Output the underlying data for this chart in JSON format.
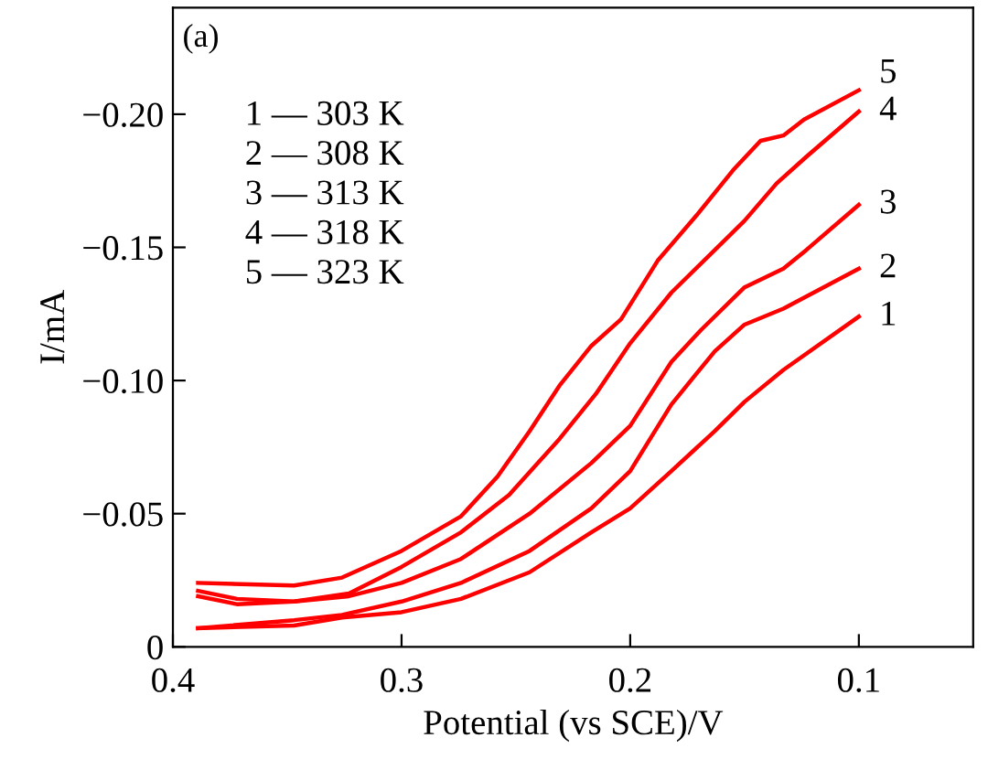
{
  "chart_data": {
    "type": "line",
    "xlabel": "Potential (vs SCE)/V",
    "ylabel": "I/mA",
    "xlim": [
      0.4,
      0.05
    ],
    "xticks": [
      0.4,
      0.3,
      0.2,
      0.1
    ],
    "ylim": [
      0,
      -0.24
    ],
    "yticks": [
      0,
      {
        "value": -0.05,
        "label": "−0.05"
      },
      {
        "value": -0.1,
        "label": "−0.10"
      },
      {
        "value": -0.15,
        "label": "−0.15"
      },
      {
        "value": -0.2,
        "label": "−0.20"
      }
    ],
    "grid": false,
    "annotations": [
      "(a)",
      "1 — 303 K",
      "2 — 308 K",
      "3 — 313 K",
      "4 — 318 K",
      "5 — 323 K"
    ],
    "series": [
      {
        "name": "1",
        "color": "#ff0000",
        "x": [
          0.389,
          0.347,
          0.326,
          0.3,
          0.274,
          0.244,
          0.217,
          0.2,
          0.182,
          0.163,
          0.15,
          0.133,
          0.1
        ],
        "values": [
          -0.007,
          -0.008,
          -0.011,
          -0.013,
          -0.018,
          -0.028,
          -0.043,
          -0.052,
          -0.066,
          -0.081,
          -0.092,
          -0.104,
          -0.124
        ]
      },
      {
        "name": "2",
        "color": "#ff0000",
        "x": [
          0.389,
          0.347,
          0.326,
          0.3,
          0.274,
          0.244,
          0.217,
          0.2,
          0.182,
          0.163,
          0.15,
          0.133,
          0.1
        ],
        "values": [
          -0.007,
          -0.01,
          -0.012,
          -0.017,
          -0.024,
          -0.036,
          -0.052,
          -0.066,
          -0.091,
          -0.111,
          -0.121,
          -0.127,
          -0.142
        ]
      },
      {
        "name": "3",
        "color": "#ff0000",
        "x": [
          0.389,
          0.372,
          0.347,
          0.323,
          0.3,
          0.274,
          0.244,
          0.217,
          0.2,
          0.182,
          0.169,
          0.15,
          0.133,
          0.123,
          0.1
        ],
        "values": [
          -0.019,
          -0.016,
          -0.017,
          -0.019,
          -0.024,
          -0.033,
          -0.05,
          -0.069,
          -0.083,
          -0.107,
          -0.119,
          -0.135,
          -0.142,
          -0.149,
          -0.166
        ]
      },
      {
        "name": "4",
        "color": "#ff0000",
        "x": [
          0.389,
          0.372,
          0.347,
          0.323,
          0.3,
          0.274,
          0.253,
          0.231,
          0.215,
          0.2,
          0.182,
          0.163,
          0.15,
          0.136,
          0.123,
          0.1
        ],
        "values": [
          -0.021,
          -0.018,
          -0.017,
          -0.02,
          -0.03,
          -0.043,
          -0.057,
          -0.078,
          -0.095,
          -0.114,
          -0.133,
          -0.149,
          -0.16,
          -0.174,
          -0.184,
          -0.201
        ]
      },
      {
        "name": "5",
        "color": "#ff0000",
        "x": [
          0.389,
          0.347,
          0.326,
          0.3,
          0.274,
          0.258,
          0.244,
          0.231,
          0.217,
          0.204,
          0.188,
          0.171,
          0.155,
          0.143,
          0.133,
          0.124,
          0.1
        ],
        "values": [
          -0.024,
          -0.023,
          -0.026,
          -0.036,
          -0.049,
          -0.064,
          -0.081,
          -0.098,
          -0.113,
          -0.123,
          -0.145,
          -0.162,
          -0.179,
          -0.19,
          -0.192,
          -0.198,
          -0.209
        ]
      }
    ]
  }
}
